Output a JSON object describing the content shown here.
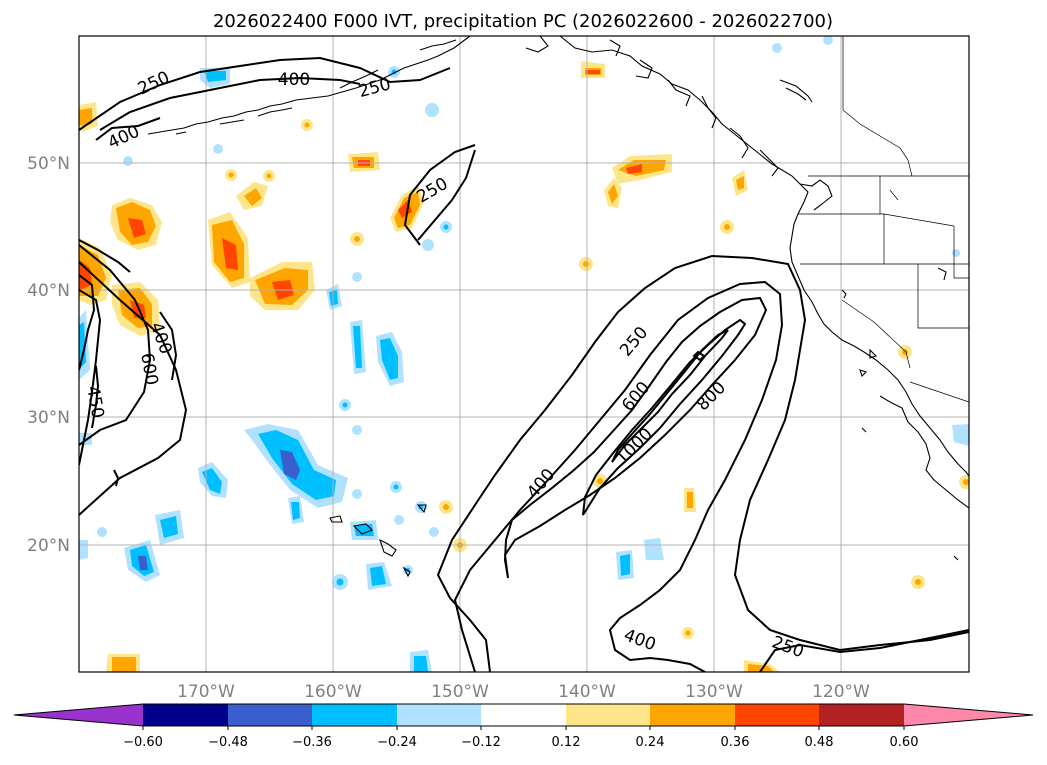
{
  "title": "2026022400 F000 IVT, precipitation PC (2026022600 - 2026022700)",
  "lat_labels": [
    "50°N",
    "40°N",
    "30°N",
    "20°N"
  ],
  "lon_labels": [
    "170°W",
    "160°W",
    "150°W",
    "140°W",
    "130°W",
    "120°W"
  ],
  "contour_labels": [
    "250",
    "400",
    "250",
    "400",
    "250",
    "600",
    "400",
    "450",
    "250",
    "600",
    "800",
    "1000",
    "400",
    "400",
    "250"
  ],
  "colorbar": {
    "ticks": [
      "−0.60",
      "−0.48",
      "−0.36",
      "−0.24",
      "−0.12",
      "0.12",
      "0.24",
      "0.36",
      "0.48",
      "0.60"
    ],
    "colors": [
      "#9932cc",
      "#00008b",
      "#3a5fcd",
      "#00bfff",
      "#b0e2ff",
      "#ffffff",
      "#fde68a",
      "#ffa500",
      "#ff4500",
      "#b22222",
      "#ff88aa"
    ]
  },
  "legend_colors": {
    "blue_light": "#b0e2ff",
    "blue": "#00bfff",
    "blue_dark": "#3a5fcd",
    "yellow": "#fde68a",
    "orange": "#ffa500",
    "red": "#ff4500"
  }
}
